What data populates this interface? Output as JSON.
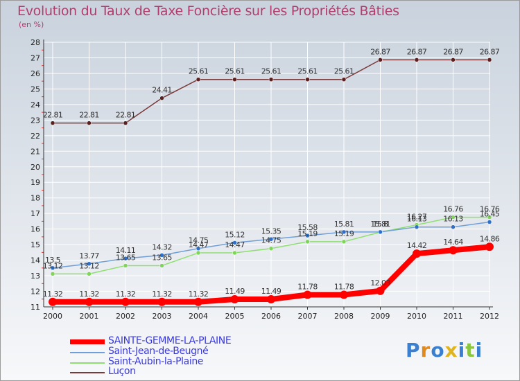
{
  "header": {
    "title": "Evolution du Taux de Taxe Foncière sur les Propriétés Bâties",
    "unit": "(en %)"
  },
  "chart_data": {
    "type": "line",
    "title": "Evolution du Taux de Taxe Foncière sur les Propriétés Bâties",
    "ylabel": "(en %)",
    "xlabel": "",
    "x": [
      2000,
      2001,
      2002,
      2003,
      2004,
      2005,
      2006,
      2007,
      2008,
      2009,
      2010,
      2011,
      2012
    ],
    "ylim": [
      11,
      28
    ],
    "yticks": [
      11,
      12,
      13,
      14,
      15,
      16,
      17,
      18,
      19,
      20,
      21,
      22,
      23,
      24,
      25,
      26,
      27,
      28
    ],
    "grid": true,
    "legend_position": "bottom-left",
    "series": [
      {
        "name": "SAINTE-GEMME-LA-PLAINE",
        "color": "#ff0000",
        "values": [
          11.32,
          11.32,
          11.32,
          11.32,
          11.32,
          11.49,
          11.49,
          11.78,
          11.78,
          12.03,
          14.42,
          14.64,
          14.86
        ],
        "labels": [
          "11.32",
          "11.32",
          "11.32",
          "11.32",
          "11.32",
          "11.49",
          "11.49",
          "11.78",
          "11.78",
          "12.03",
          "14.42",
          "14.64",
          "14.86"
        ]
      },
      {
        "name": "Saint-Jean-de-Beugné",
        "color": "#6f9fd8",
        "marker": "#2d6fc9",
        "values": [
          13.5,
          13.77,
          14.11,
          14.32,
          14.75,
          15.12,
          15.35,
          15.58,
          15.81,
          15.81,
          16.13,
          16.13,
          16.45
        ],
        "labels": [
          "13.5",
          "13.77",
          "14.11",
          "14.32",
          "14.75",
          "15.12",
          "15.35",
          "15.58",
          "15.81",
          "15.81",
          "16.13",
          "16.13",
          "16.45"
        ]
      },
      {
        "name": "Saint-Aubin-la-Plaine",
        "color": "#8fdf70",
        "marker": "#7fd45a",
        "values": [
          13.12,
          13.12,
          13.65,
          13.65,
          14.47,
          14.47,
          14.75,
          15.19,
          15.19,
          15.8,
          16.27,
          16.76,
          16.76
        ],
        "labels": [
          "13.12",
          "13.12",
          "13.65",
          "13.65",
          "14.47",
          "14.47",
          "14.75",
          "15.19",
          "15.19",
          "15.8",
          "16.27",
          "16.76",
          "16.76"
        ]
      },
      {
        "name": "Luçon",
        "color": "#7a3a3a",
        "marker": "#5a1f1f",
        "values": [
          22.81,
          22.81,
          22.81,
          24.41,
          25.61,
          25.61,
          25.61,
          25.61,
          25.61,
          26.87,
          26.87,
          26.87,
          26.87
        ],
        "labels": [
          "22.81",
          "22.81",
          "22.81",
          "24.41",
          "25.61",
          "25.61",
          "25.61",
          "25.61",
          "25.61",
          "26.87",
          "26.87",
          "26.87",
          "26.87"
        ]
      }
    ]
  },
  "legend": {
    "items": [
      {
        "label": "SAINTE-GEMME-LA-PLAINE",
        "color": "#ff0000"
      },
      {
        "label": "Saint-Jean-de-Beugné",
        "color": "#6f9fd8"
      },
      {
        "label": "Saint-Aubin-la-Plaine",
        "color": "#8fdf70"
      },
      {
        "label": "Luçon",
        "color": "#7a3a3a"
      }
    ]
  },
  "logo": {
    "text": "Proxiti",
    "letters": [
      "P",
      "r",
      "o",
      "x",
      "i",
      "t",
      "i"
    ],
    "colors": [
      "#3a7fd0",
      "#e08a1e",
      "#3a7fd0",
      "#e0b41e",
      "#3a7fd0",
      "#8cc640",
      "#3a7fd0"
    ]
  }
}
